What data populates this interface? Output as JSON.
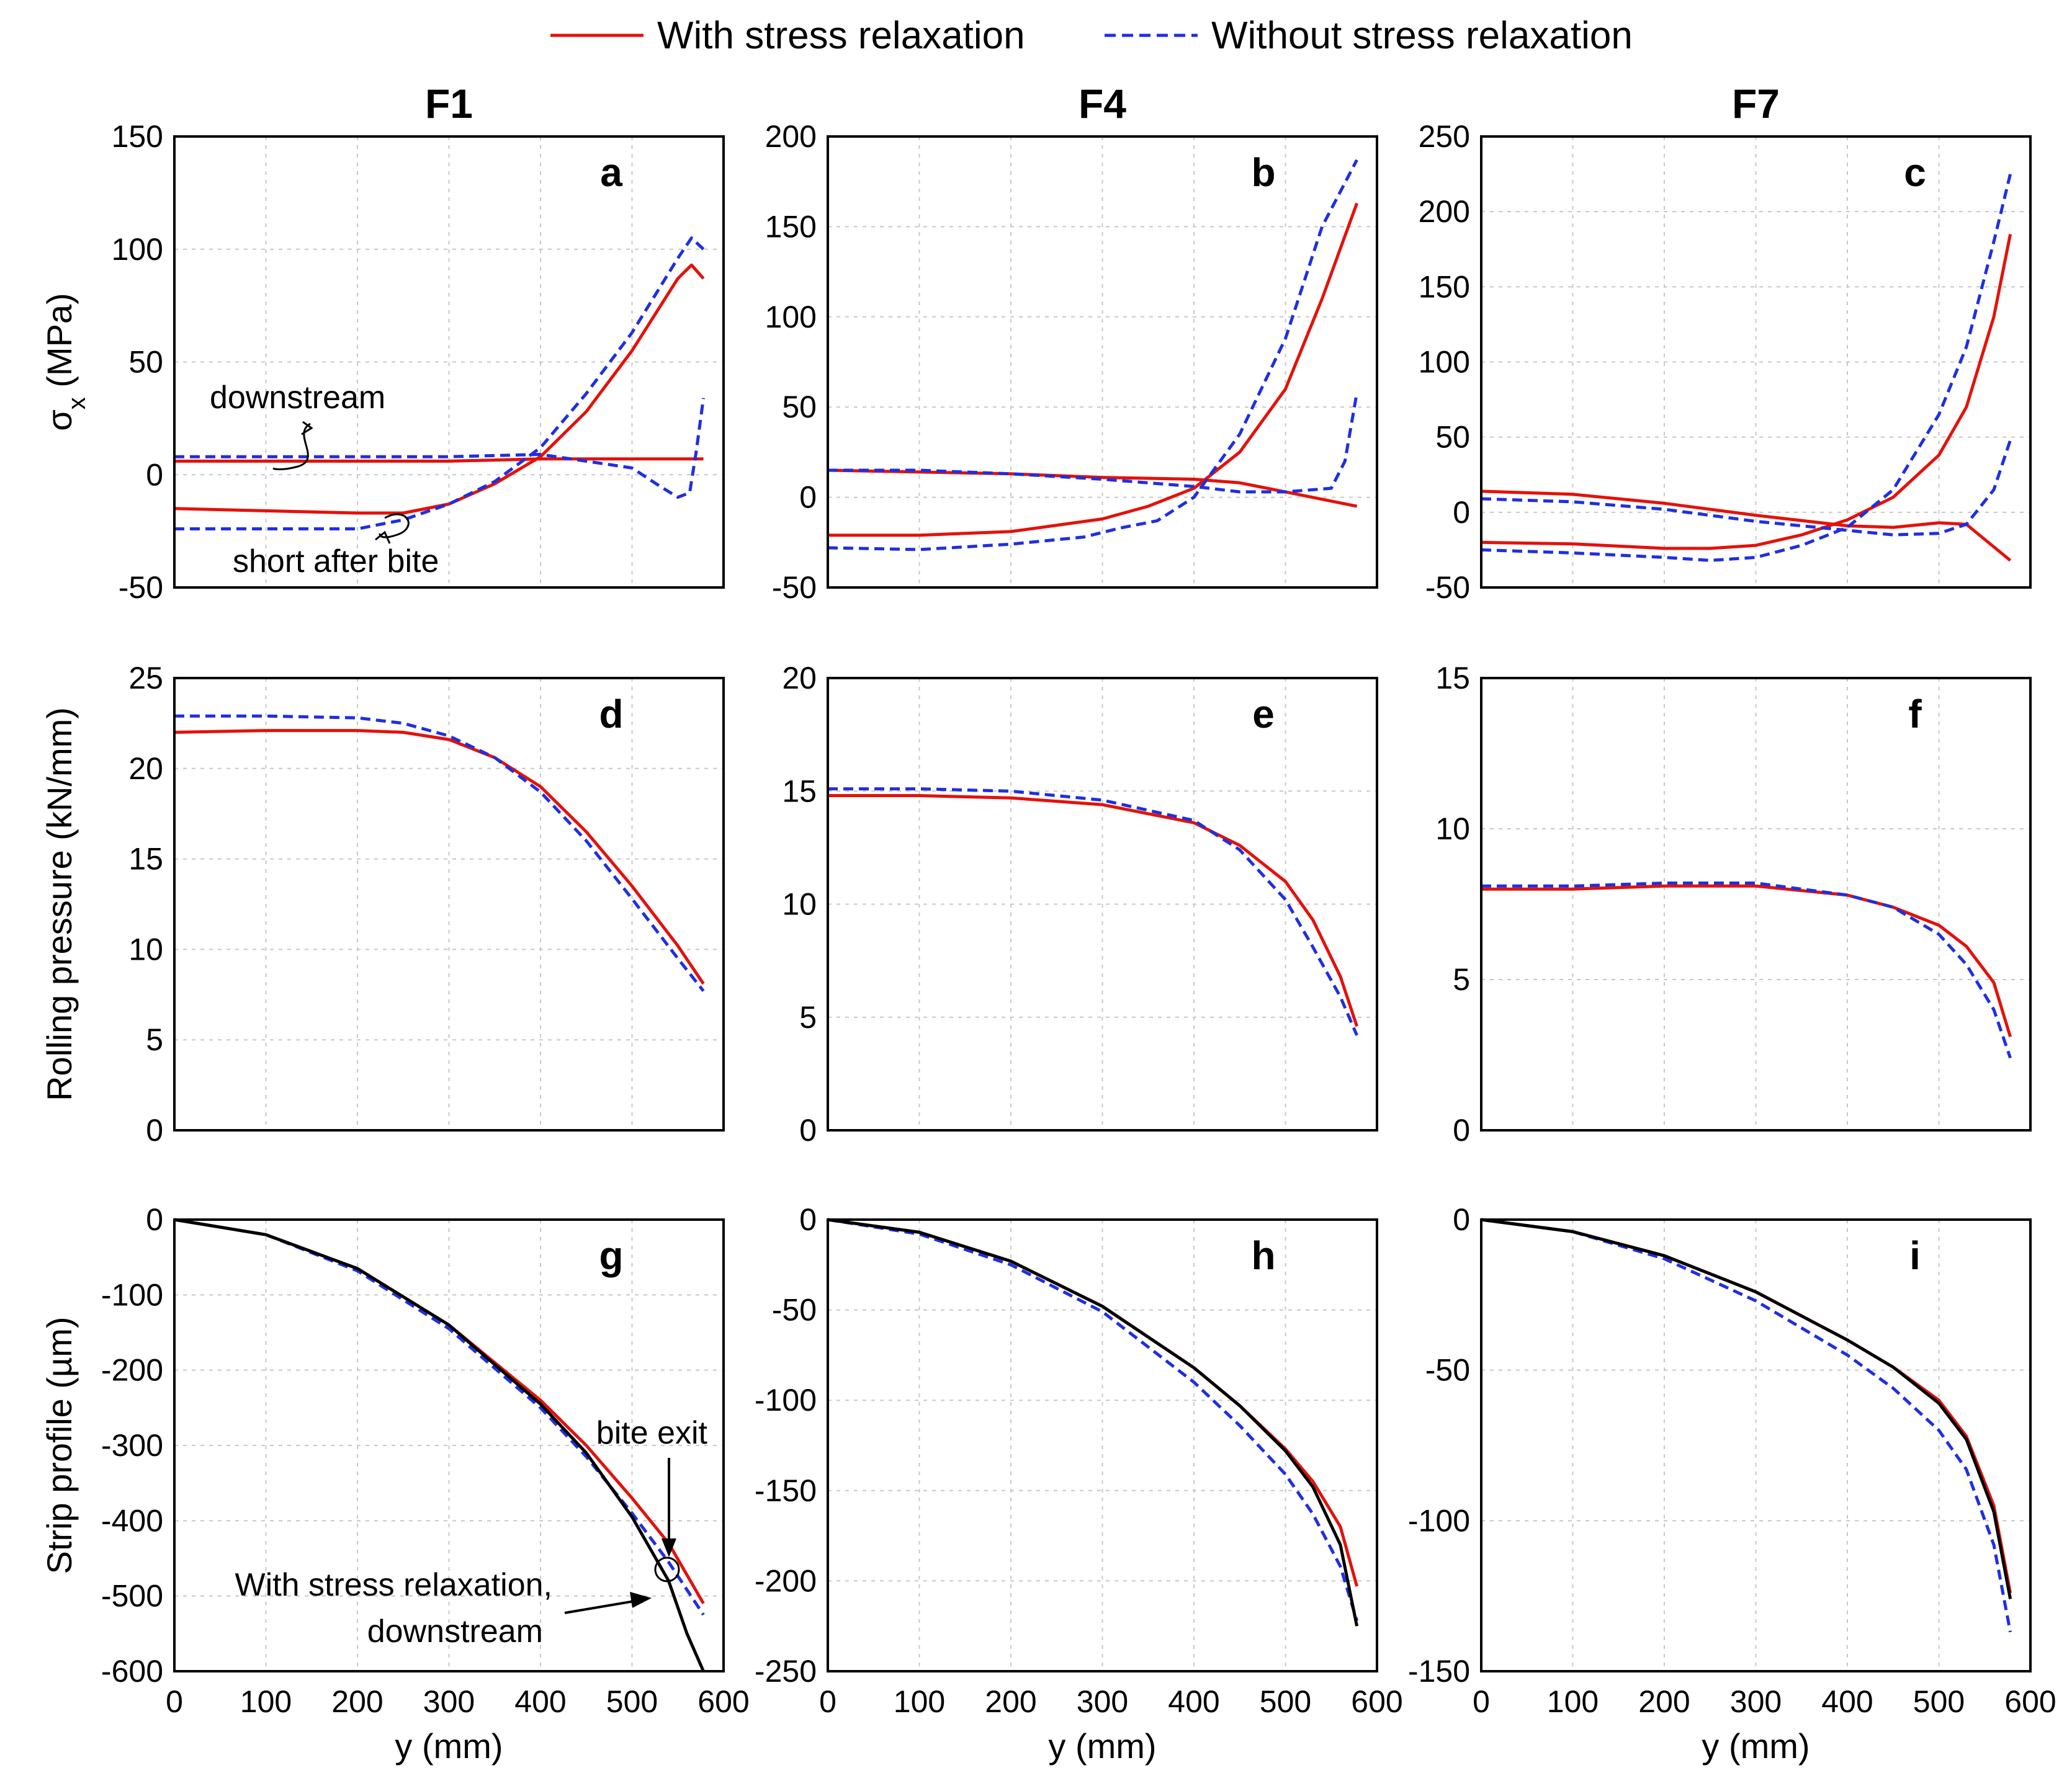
{
  "chart_data": {
    "legend": {
      "placement": "top-center",
      "entries": [
        {
          "name": "With stress relaxation",
          "color": "#e3120b",
          "style": "solid"
        },
        {
          "name": "Without stress relaxation",
          "color": "#1f2fe0",
          "style": "dashed"
        }
      ]
    },
    "columns": [
      "F1",
      "F4",
      "F7"
    ],
    "x_axis": {
      "label": "y (mm)",
      "ticks": [
        0,
        100,
        200,
        300,
        400,
        500,
        600
      ],
      "range": [
        0,
        600
      ]
    },
    "rows": [
      {
        "ylabel": "σx (MPa)"
      },
      {
        "ylabel": "Rolling pressure (kN/mm)"
      },
      {
        "ylabel": "Strip profile (µm)"
      }
    ],
    "panels": [
      {
        "id": "a",
        "column": "F1",
        "row": 0,
        "type": "line",
        "ylim": [
          -50,
          150
        ],
        "yticks": [
          -50,
          0,
          50,
          100,
          150
        ],
        "series": [
          {
            "name": "With stress relaxation",
            "color": "#e3120b",
            "style": "solid",
            "x": [
              0,
              100,
              200,
              250,
              300,
              350,
              400,
              450,
              500,
              550,
              565,
              578
            ],
            "y": [
              -15,
              -16,
              -17,
              -17,
              -13,
              -4,
              8,
              28,
              55,
              87,
              93,
              87
            ]
          },
          {
            "name": "With stress relaxation",
            "color": "#e3120b",
            "style": "solid",
            "x": [
              0,
              100,
              200,
              300,
              400,
              500,
              578
            ],
            "y": [
              6,
              6,
              6,
              6,
              7,
              7,
              7
            ]
          },
          {
            "name": "Without stress relaxation",
            "color": "#1f2fe0",
            "style": "dashed",
            "x": [
              0,
              100,
              200,
              250,
              300,
              350,
              400,
              450,
              500,
              550,
              565,
              578
            ],
            "y": [
              -24,
              -24,
              -24,
              -20,
              -13,
              -3,
              12,
              36,
              63,
              96,
              105,
              100
            ]
          },
          {
            "name": "Without stress relaxation",
            "color": "#1f2fe0",
            "style": "dashed",
            "x": [
              0,
              100,
              200,
              300,
              400,
              450,
              500,
              530,
              550,
              563,
              570,
              578
            ],
            "y": [
              8,
              8,
              8,
              8,
              9,
              6,
              3,
              -5,
              -10,
              -8,
              10,
              34
            ]
          }
        ],
        "annotations": [
          "downstream",
          "short after bite"
        ]
      },
      {
        "id": "b",
        "column": "F4",
        "row": 0,
        "type": "line",
        "ylim": [
          -50,
          200
        ],
        "yticks": [
          -50,
          0,
          50,
          100,
          150,
          200
        ],
        "series": [
          {
            "name": "With stress relaxation",
            "color": "#e3120b",
            "style": "solid",
            "x": [
              0,
              100,
              200,
              300,
              350,
              400,
              450,
              500,
              540,
              578
            ],
            "y": [
              -21,
              -21,
              -19,
              -12,
              -5,
              5,
              25,
              60,
              110,
              163
            ]
          },
          {
            "name": "With stress relaxation",
            "color": "#e3120b",
            "style": "solid",
            "x": [
              0,
              100,
              200,
              300,
              400,
              450,
              500,
              578
            ],
            "y": [
              15,
              14,
              13,
              11,
              10,
              8,
              3,
              -5
            ]
          },
          {
            "name": "Without stress relaxation",
            "color": "#1f2fe0",
            "style": "dashed",
            "x": [
              0,
              100,
              200,
              280,
              320,
              360,
              400,
              450,
              500,
              540,
              578
            ],
            "y": [
              -28,
              -29,
              -26,
              -22,
              -17,
              -13,
              0,
              35,
              88,
              150,
              187
            ]
          },
          {
            "name": "Without stress relaxation",
            "color": "#1f2fe0",
            "style": "dashed",
            "x": [
              0,
              100,
              200,
              300,
              400,
              450,
              500,
              550,
              565,
              578
            ],
            "y": [
              15,
              15,
              13,
              10,
              6,
              3,
              3,
              5,
              20,
              58
            ]
          }
        ]
      },
      {
        "id": "c",
        "column": "F7",
        "row": 0,
        "type": "line",
        "ylim": [
          -50,
          250
        ],
        "yticks": [
          -50,
          0,
          50,
          100,
          150,
          200,
          250
        ],
        "series": [
          {
            "name": "With stress relaxation",
            "color": "#e3120b",
            "style": "solid",
            "x": [
              0,
              100,
              200,
              250,
              300,
              350,
              400,
              450,
              500,
              530,
              560,
              578
            ],
            "y": [
              -20,
              -21,
              -24,
              -24,
              -22,
              -15,
              -5,
              10,
              38,
              70,
              130,
              185
            ]
          },
          {
            "name": "With stress relaxation",
            "color": "#e3120b",
            "style": "solid",
            "x": [
              0,
              100,
              200,
              300,
              400,
              450,
              500,
              530,
              550,
              578
            ],
            "y": [
              14,
              12,
              6,
              -2,
              -9,
              -10,
              -7,
              -8,
              -18,
              -32
            ]
          },
          {
            "name": "Without stress relaxation",
            "color": "#1f2fe0",
            "style": "dashed",
            "x": [
              0,
              100,
              200,
              250,
              300,
              350,
              400,
              450,
              500,
              530,
              560,
              578
            ],
            "y": [
              -25,
              -27,
              -30,
              -32,
              -30,
              -22,
              -10,
              15,
              65,
              110,
              180,
              225
            ]
          },
          {
            "name": "Without stress relaxation",
            "color": "#1f2fe0",
            "style": "dashed",
            "x": [
              0,
              100,
              200,
              300,
              400,
              450,
              500,
              530,
              560,
              578
            ],
            "y": [
              9,
              7,
              2,
              -6,
              -12,
              -15,
              -14,
              -8,
              15,
              48
            ]
          }
        ]
      },
      {
        "id": "d",
        "column": "F1",
        "row": 1,
        "type": "line",
        "ylim": [
          0,
          25
        ],
        "yticks": [
          0,
          5,
          10,
          15,
          20,
          25
        ],
        "series": [
          {
            "name": "With stress relaxation",
            "color": "#e3120b",
            "style": "solid",
            "x": [
              0,
              100,
              200,
              250,
              300,
              350,
              400,
              450,
              500,
              550,
              578
            ],
            "y": [
              22.0,
              22.1,
              22.1,
              22.0,
              21.6,
              20.6,
              19.0,
              16.5,
              13.5,
              10.2,
              8.1
            ]
          },
          {
            "name": "Without stress relaxation",
            "color": "#1f2fe0",
            "style": "dashed",
            "x": [
              0,
              100,
              200,
              250,
              300,
              350,
              400,
              450,
              500,
              550,
              578
            ],
            "y": [
              22.9,
              22.9,
              22.8,
              22.5,
              21.8,
              20.6,
              18.7,
              16.0,
              12.8,
              9.5,
              7.7
            ]
          }
        ]
      },
      {
        "id": "e",
        "column": "F4",
        "row": 1,
        "type": "line",
        "ylim": [
          0,
          20
        ],
        "yticks": [
          0,
          5,
          10,
          15,
          20
        ],
        "series": [
          {
            "name": "With stress relaxation",
            "color": "#e3120b",
            "style": "solid",
            "x": [
              0,
              100,
              200,
              300,
              400,
              450,
              500,
              530,
              560,
              578
            ],
            "y": [
              14.8,
              14.8,
              14.7,
              14.4,
              13.6,
              12.6,
              11.0,
              9.3,
              6.8,
              4.6
            ]
          },
          {
            "name": "Without stress relaxation",
            "color": "#1f2fe0",
            "style": "dashed",
            "x": [
              0,
              100,
              200,
              300,
              400,
              450,
              500,
              530,
              560,
              578
            ],
            "y": [
              15.1,
              15.1,
              15.0,
              14.6,
              13.7,
              12.4,
              10.2,
              8.1,
              5.9,
              4.2
            ]
          }
        ]
      },
      {
        "id": "f",
        "column": "F7",
        "row": 1,
        "type": "line",
        "ylim": [
          0,
          15
        ],
        "yticks": [
          0,
          5,
          10,
          15
        ],
        "series": [
          {
            "name": "With stress relaxation",
            "color": "#e3120b",
            "style": "solid",
            "x": [
              0,
              100,
              200,
              300,
              400,
              450,
              500,
              530,
              560,
              578
            ],
            "y": [
              8.0,
              8.0,
              8.1,
              8.1,
              7.8,
              7.4,
              6.8,
              6.1,
              4.9,
              3.1
            ]
          },
          {
            "name": "Without stress relaxation",
            "color": "#1f2fe0",
            "style": "dashed",
            "x": [
              0,
              100,
              200,
              300,
              400,
              450,
              500,
              530,
              560,
              578
            ],
            "y": [
              8.1,
              8.1,
              8.2,
              8.2,
              7.8,
              7.4,
              6.5,
              5.5,
              4.0,
              2.4
            ]
          }
        ]
      },
      {
        "id": "g",
        "column": "F1",
        "row": 2,
        "type": "line",
        "ylim": [
          -600,
          0
        ],
        "yticks": [
          -600,
          -500,
          -400,
          -300,
          -200,
          -100,
          0
        ],
        "series": [
          {
            "name": "With stress relaxation",
            "color": "#e3120b",
            "style": "solid",
            "x": [
              0,
              100,
              200,
              300,
              400,
              450,
              500,
              540,
              578
            ],
            "y": [
              0,
              -20,
              -65,
              -140,
              -240,
              -300,
              -370,
              -430,
              -510
            ]
          },
          {
            "name": "Without stress relaxation",
            "color": "#1f2fe0",
            "style": "dashed",
            "x": [
              0,
              100,
              200,
              300,
              400,
              450,
              500,
              540,
              578
            ],
            "y": [
              0,
              -20,
              -68,
              -145,
              -250,
              -315,
              -390,
              -455,
              -525
            ]
          },
          {
            "name": "With stress relaxation, downstream",
            "color": "#000000",
            "style": "solid",
            "x": [
              0,
              100,
              200,
              300,
              400,
              450,
              500,
              540,
              560,
              578
            ],
            "y": [
              0,
              -20,
              -65,
              -140,
              -245,
              -310,
              -395,
              -480,
              -550,
              -600
            ]
          }
        ],
        "annotations": [
          "bite exit",
          "With stress relaxation,",
          "downstream"
        ]
      },
      {
        "id": "h",
        "column": "F4",
        "row": 2,
        "type": "line",
        "ylim": [
          -250,
          0
        ],
        "yticks": [
          -250,
          -200,
          -150,
          -100,
          -50,
          0
        ],
        "series": [
          {
            "name": "With stress relaxation",
            "color": "#e3120b",
            "style": "solid",
            "x": [
              0,
              100,
              200,
              300,
              400,
              450,
              500,
              530,
              560,
              578
            ],
            "y": [
              0,
              -7,
              -23,
              -48,
              -82,
              -103,
              -127,
              -145,
              -170,
              -203
            ]
          },
          {
            "name": "Without stress relaxation",
            "color": "#1f2fe0",
            "style": "dashed",
            "x": [
              0,
              100,
              200,
              300,
              400,
              450,
              500,
              530,
              560,
              578
            ],
            "y": [
              0,
              -8,
              -25,
              -51,
              -90,
              -114,
              -141,
              -163,
              -192,
              -222
            ]
          },
          {
            "name": "With stress relaxation, downstream",
            "color": "#000000",
            "style": "solid",
            "x": [
              0,
              100,
              200,
              300,
              400,
              450,
              500,
              530,
              560,
              578
            ],
            "y": [
              0,
              -7,
              -23,
              -48,
              -82,
              -103,
              -128,
              -148,
              -180,
              -225
            ]
          }
        ]
      },
      {
        "id": "i",
        "column": "F7",
        "row": 2,
        "type": "line",
        "ylim": [
          -150,
          0
        ],
        "yticks": [
          -150,
          -100,
          -50,
          0
        ],
        "series": [
          {
            "name": "With stress relaxation",
            "color": "#e3120b",
            "style": "solid",
            "x": [
              0,
              100,
              200,
              300,
              400,
              450,
              500,
              530,
              560,
              578
            ],
            "y": [
              0,
              -4,
              -12,
              -24,
              -40,
              -49,
              -60,
              -72,
              -95,
              -124
            ]
          },
          {
            "name": "Without stress relaxation",
            "color": "#1f2fe0",
            "style": "dashed",
            "x": [
              0,
              100,
              200,
              300,
              400,
              450,
              500,
              530,
              560,
              578
            ],
            "y": [
              0,
              -4,
              -13,
              -27,
              -45,
              -56,
              -70,
              -83,
              -108,
              -137
            ]
          },
          {
            "name": "With stress relaxation, downstream",
            "color": "#000000",
            "style": "solid",
            "x": [
              0,
              100,
              200,
              300,
              400,
              450,
              500,
              530,
              560,
              578
            ],
            "y": [
              0,
              -4,
              -12,
              -24,
              -40,
              -49,
              -61,
              -73,
              -97,
              -126
            ]
          }
        ]
      }
    ]
  }
}
